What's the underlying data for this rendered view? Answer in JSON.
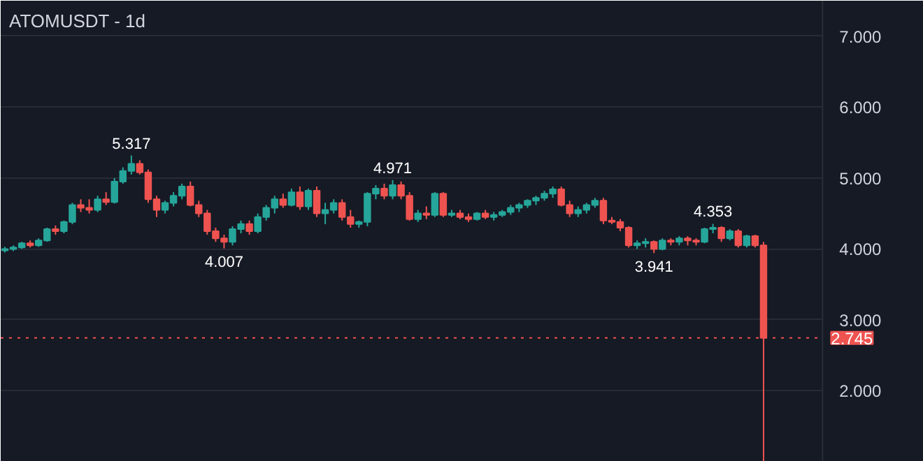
{
  "chart_data": {
    "type": "candlestick",
    "title": "ATOMUSDT - 1d",
    "categories": [
      null,
      null,
      null,
      null,
      null,
      null,
      null,
      null,
      null,
      null,
      null,
      null,
      null,
      null,
      null,
      null,
      null,
      null,
      null,
      null,
      null,
      null,
      null,
      null,
      null,
      null,
      null,
      null,
      null,
      null,
      null,
      null,
      null,
      null,
      null,
      null,
      null,
      null,
      null,
      null,
      null,
      null,
      null,
      null,
      null,
      null,
      null,
      null,
      null,
      null,
      null,
      null,
      null,
      null,
      null,
      null,
      null,
      null,
      null,
      null,
      null,
      null,
      null,
      null,
      null,
      null,
      null,
      null,
      null,
      null,
      null,
      null,
      null,
      null,
      null,
      null,
      null,
      null,
      null,
      null,
      null,
      null,
      null,
      null,
      null,
      null,
      null,
      null,
      null,
      null,
      null
    ],
    "ohlc": [
      [
        3.98,
        4.03,
        3.95,
        4.0
      ],
      [
        4.0,
        4.05,
        3.97,
        4.02
      ],
      [
        4.02,
        4.1,
        4.0,
        4.08
      ],
      [
        4.08,
        4.12,
        4.02,
        4.05
      ],
      [
        4.05,
        4.15,
        4.03,
        4.12
      ],
      [
        4.12,
        4.3,
        4.1,
        4.28
      ],
      [
        4.28,
        4.33,
        4.2,
        4.25
      ],
      [
        4.25,
        4.4,
        4.22,
        4.38
      ],
      [
        4.38,
        4.65,
        4.35,
        4.62
      ],
      [
        4.62,
        4.7,
        4.52,
        4.58
      ],
      [
        4.58,
        4.7,
        4.5,
        4.55
      ],
      [
        4.55,
        4.75,
        4.52,
        4.7
      ],
      [
        4.7,
        4.8,
        4.62,
        4.66
      ],
      [
        4.66,
        5.0,
        4.64,
        4.95
      ],
      [
        4.95,
        5.15,
        4.92,
        5.1
      ],
      [
        5.1,
        5.317,
        5.05,
        5.2
      ],
      [
        5.2,
        5.25,
        5.05,
        5.08
      ],
      [
        5.08,
        5.12,
        4.65,
        4.7
      ],
      [
        4.7,
        4.75,
        4.45,
        4.55
      ],
      [
        4.55,
        4.68,
        4.5,
        4.65
      ],
      [
        4.65,
        4.8,
        4.6,
        4.75
      ],
      [
        4.75,
        4.92,
        4.7,
        4.88
      ],
      [
        4.88,
        4.95,
        4.6,
        4.62
      ],
      [
        4.62,
        4.68,
        4.45,
        4.5
      ],
      [
        4.5,
        4.55,
        4.2,
        4.25
      ],
      [
        4.25,
        4.3,
        4.1,
        4.15
      ],
      [
        4.15,
        4.2,
        4.007,
        4.1
      ],
      [
        4.1,
        4.32,
        4.05,
        4.28
      ],
      [
        4.28,
        4.4,
        4.22,
        4.35
      ],
      [
        4.35,
        4.4,
        4.2,
        4.25
      ],
      [
        4.25,
        4.5,
        4.22,
        4.45
      ],
      [
        4.45,
        4.62,
        4.4,
        4.58
      ],
      [
        4.58,
        4.75,
        4.5,
        4.7
      ],
      [
        4.7,
        4.78,
        4.58,
        4.62
      ],
      [
        4.62,
        4.85,
        4.6,
        4.8
      ],
      [
        4.8,
        4.88,
        4.55,
        4.6
      ],
      [
        4.6,
        4.85,
        4.55,
        4.82
      ],
      [
        4.82,
        4.88,
        4.45,
        4.5
      ],
      [
        4.5,
        4.65,
        4.35,
        4.55
      ],
      [
        4.55,
        4.7,
        4.5,
        4.65
      ],
      [
        4.65,
        4.7,
        4.4,
        4.45
      ],
      [
        4.45,
        4.55,
        4.3,
        4.35
      ],
      [
        4.35,
        4.4,
        4.3,
        4.38
      ],
      [
        4.38,
        4.8,
        4.32,
        4.78
      ],
      [
        4.78,
        4.9,
        4.7,
        4.85
      ],
      [
        4.85,
        4.92,
        4.7,
        4.75
      ],
      [
        4.75,
        4.971,
        4.7,
        4.9
      ],
      [
        4.9,
        4.95,
        4.7,
        4.75
      ],
      [
        4.75,
        4.8,
        4.4,
        4.42
      ],
      [
        4.42,
        4.55,
        4.38,
        4.5
      ],
      [
        4.5,
        4.6,
        4.42,
        4.48
      ],
      [
        4.48,
        4.8,
        4.45,
        4.78
      ],
      [
        4.78,
        4.8,
        4.45,
        4.48
      ],
      [
        4.48,
        4.55,
        4.45,
        4.5
      ],
      [
        4.5,
        4.55,
        4.42,
        4.45
      ],
      [
        4.45,
        4.5,
        4.38,
        4.42
      ],
      [
        4.42,
        4.52,
        4.4,
        4.5
      ],
      [
        4.5,
        4.55,
        4.42,
        4.45
      ],
      [
        4.45,
        4.52,
        4.4,
        4.48
      ],
      [
        4.48,
        4.55,
        4.45,
        4.52
      ],
      [
        4.52,
        4.62,
        4.48,
        4.58
      ],
      [
        4.58,
        4.65,
        4.52,
        4.62
      ],
      [
        4.62,
        4.7,
        4.58,
        4.68
      ],
      [
        4.68,
        4.75,
        4.62,
        4.72
      ],
      [
        4.72,
        4.82,
        4.68,
        4.78
      ],
      [
        4.78,
        4.88,
        4.72,
        4.84
      ],
      [
        4.84,
        4.88,
        4.6,
        4.62
      ],
      [
        4.62,
        4.68,
        4.45,
        4.5
      ],
      [
        4.5,
        4.6,
        4.45,
        4.55
      ],
      [
        4.55,
        4.65,
        4.5,
        4.62
      ],
      [
        4.62,
        4.72,
        4.58,
        4.68
      ],
      [
        4.68,
        4.72,
        4.35,
        4.4
      ],
      [
        4.4,
        4.45,
        4.35,
        4.38
      ],
      [
        4.38,
        4.42,
        4.25,
        4.3
      ],
      [
        4.3,
        4.32,
        4.02,
        4.05
      ],
      [
        4.05,
        4.12,
        4.0,
        4.08
      ],
      [
        4.08,
        4.15,
        4.02,
        4.1
      ],
      [
        4.1,
        4.12,
        3.941,
        4.0
      ],
      [
        4.0,
        4.15,
        3.98,
        4.12
      ],
      [
        4.12,
        4.15,
        4.05,
        4.1
      ],
      [
        4.1,
        4.18,
        4.05,
        4.15
      ],
      [
        4.15,
        4.18,
        4.05,
        4.12
      ],
      [
        4.12,
        4.15,
        4.05,
        4.1
      ],
      [
        4.1,
        4.3,
        4.08,
        4.28
      ],
      [
        4.28,
        4.353,
        4.22,
        4.3
      ],
      [
        4.3,
        4.32,
        4.1,
        4.15
      ],
      [
        4.15,
        4.28,
        4.12,
        4.25
      ],
      [
        4.25,
        4.28,
        4.02,
        4.05
      ],
      [
        4.05,
        4.2,
        4.02,
        4.18
      ],
      [
        4.18,
        4.2,
        4.02,
        4.05
      ],
      [
        4.05,
        4.1,
        1.0,
        2.745
      ]
    ],
    "colors": [
      "#26a69a",
      "#26a69a",
      "#26a69a",
      "#ef5350",
      "#26a69a",
      "#26a69a",
      "#ef5350",
      "#26a69a",
      "#26a69a",
      "#ef5350",
      "#ef5350",
      "#26a69a",
      "#ef5350",
      "#26a69a",
      "#26a69a",
      "#26a69a",
      "#ef5350",
      "#ef5350",
      "#ef5350",
      "#26a69a",
      "#26a69a",
      "#26a69a",
      "#ef5350",
      "#ef5350",
      "#ef5350",
      "#ef5350",
      "#ef5350",
      "#26a69a",
      "#26a69a",
      "#ef5350",
      "#26a69a",
      "#26a69a",
      "#26a69a",
      "#ef5350",
      "#26a69a",
      "#ef5350",
      "#26a69a",
      "#ef5350",
      "#26a69a",
      "#26a69a",
      "#ef5350",
      "#ef5350",
      "#26a69a",
      "#26a69a",
      "#26a69a",
      "#ef5350",
      "#26a69a",
      "#ef5350",
      "#ef5350",
      "#26a69a",
      "#ef5350",
      "#26a69a",
      "#ef5350",
      "#26a69a",
      "#ef5350",
      "#ef5350",
      "#26a69a",
      "#ef5350",
      "#26a69a",
      "#26a69a",
      "#26a69a",
      "#26a69a",
      "#26a69a",
      "#26a69a",
      "#26a69a",
      "#26a69a",
      "#ef5350",
      "#ef5350",
      "#26a69a",
      "#26a69a",
      "#26a69a",
      "#ef5350",
      "#ef5350",
      "#ef5350",
      "#ef5350",
      "#26a69a",
      "#26a69a",
      "#ef5350",
      "#26a69a",
      "#ef5350",
      "#26a69a",
      "#ef5350",
      "#ef5350",
      "#26a69a",
      "#26a69a",
      "#ef5350",
      "#26a69a",
      "#ef5350",
      "#26a69a",
      "#ef5350",
      "#ef5350"
    ],
    "ylim": [
      1.0,
      7.5
    ],
    "yticks": [
      {
        "value": 2,
        "label": "2.000"
      },
      {
        "value": 3,
        "label": "3.000"
      },
      {
        "value": 4,
        "label": "4.000"
      },
      {
        "value": 5,
        "label": "5.000"
      },
      {
        "value": 6,
        "label": "6.000"
      },
      {
        "value": 7,
        "label": "7.000"
      }
    ],
    "grid": "y",
    "ref_lines": [
      {
        "axis": "y",
        "value": 2.745,
        "label": "2.745",
        "color": "#ef5350",
        "line_style": "dotted"
      }
    ],
    "annotations": [
      {
        "text": "5.317",
        "y": 5.317
      },
      {
        "text": "4.007",
        "y": 4.007
      },
      {
        "text": "4.971",
        "y": 4.971
      },
      {
        "text": "3.941",
        "y": 3.941
      },
      {
        "text": "4.353",
        "y": 4.353
      }
    ]
  }
}
